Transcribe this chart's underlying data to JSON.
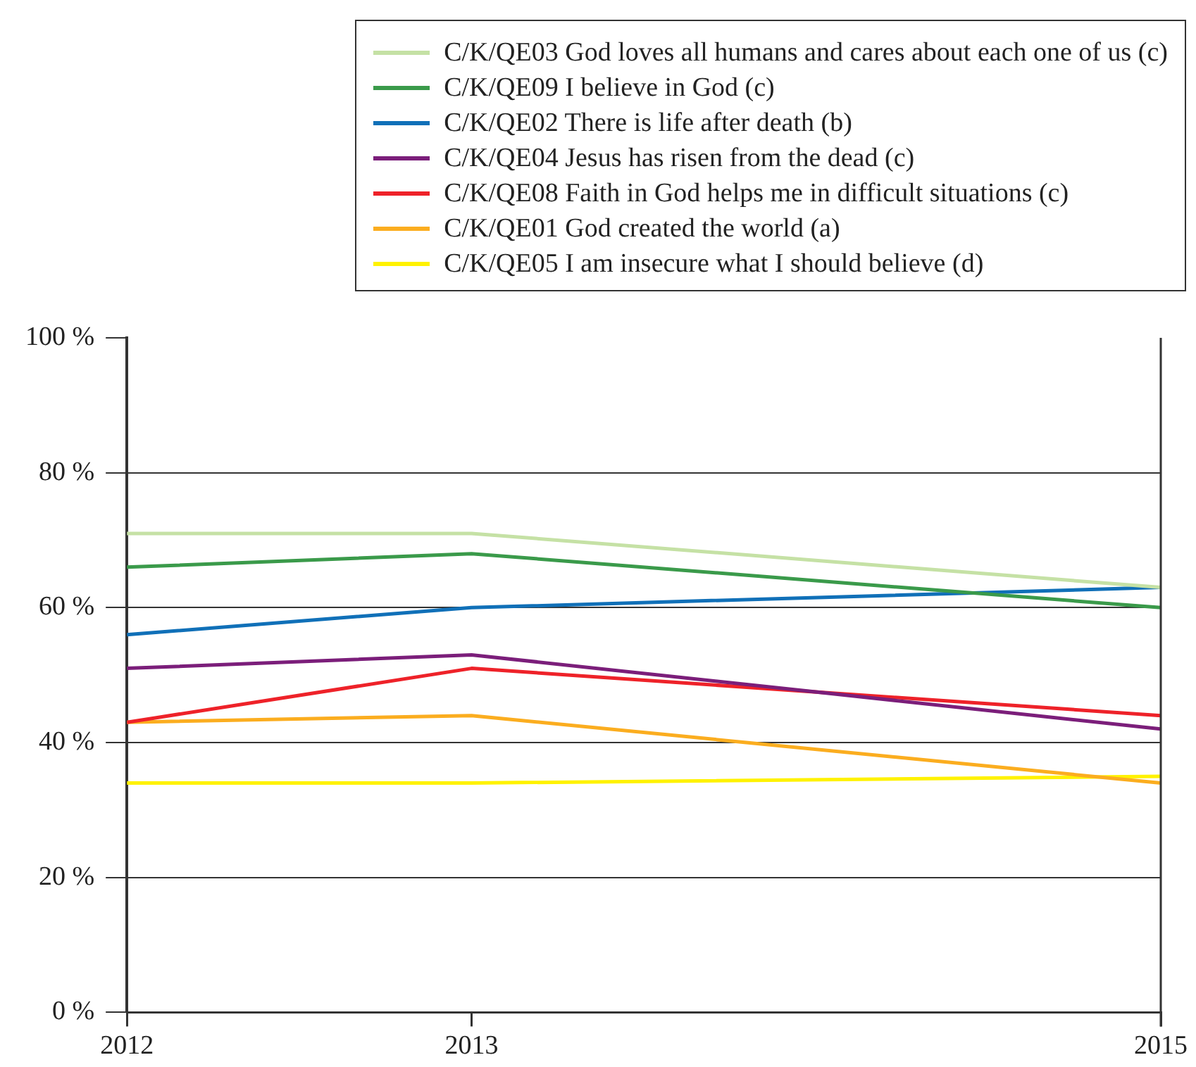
{
  "chart_data": {
    "type": "line",
    "x": [
      2012,
      2013,
      2015
    ],
    "xlim": [
      2012,
      2015
    ],
    "xticks": [
      2012,
      2013,
      2015
    ],
    "ylim": [
      0,
      100
    ],
    "yticks": [
      {
        "value": 0,
        "label": "0 %"
      },
      {
        "value": 20,
        "label": "20 %"
      },
      {
        "value": 40,
        "label": "40 %"
      },
      {
        "value": 60,
        "label": "60 %"
      },
      {
        "value": 80,
        "label": "80 %"
      },
      {
        "value": 100,
        "label": "100 %"
      }
    ],
    "grid": "y",
    "legend": "top right",
    "marker": "none",
    "line_style": "solid",
    "series": [
      {
        "name": "C/K/QE03 God loves all humans and cares about each one of us (c)",
        "color": "#c5e1a5",
        "values": [
          71,
          71,
          63
        ]
      },
      {
        "name": "C/K/QE09 I believe in God (c)",
        "color": "#3a9a4a",
        "values": [
          66,
          68,
          60
        ]
      },
      {
        "name": "C/K/QE02 There is life after death (b)",
        "color": "#1070b8",
        "values": [
          56,
          60,
          63
        ]
      },
      {
        "name": "C/K/QE04 Jesus has risen from the dead (c)",
        "color": "#7b1e7a",
        "values": [
          51,
          53,
          42
        ]
      },
      {
        "name": "C/K/QE08 Faith in God helps me in difficult situations (c)",
        "color": "#ee2229",
        "values": [
          43,
          51,
          44
        ]
      },
      {
        "name": "C/K/QE01 God created the world (a)",
        "color": "#fbad1f",
        "values": [
          43,
          44,
          34
        ]
      },
      {
        "name": "C/K/QE05 I am insecure what I should believe (d)",
        "color": "#fff200",
        "values": [
          34,
          34,
          35
        ]
      }
    ]
  }
}
